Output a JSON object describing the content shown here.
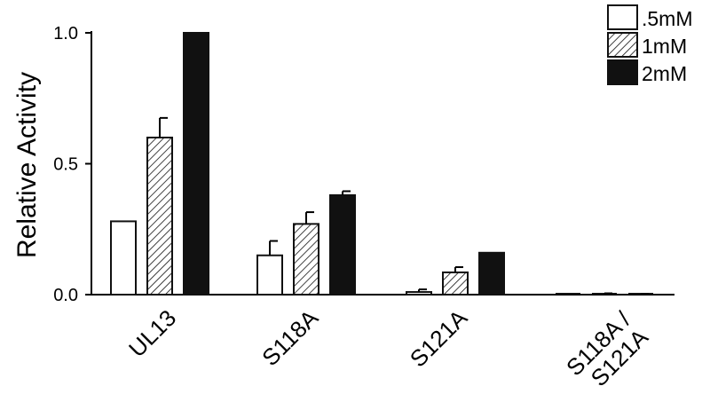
{
  "chart_data": {
    "type": "bar",
    "ylabel": "Relative Activity",
    "ylim": [
      0,
      1.0
    ],
    "yticks": [
      "0.0",
      "0.5",
      "1.0"
    ],
    "ytick_values": [
      0,
      0.5,
      1.0
    ],
    "categories": [
      {
        "lines": [
          "UL13"
        ]
      },
      {
        "lines": [
          "S118A"
        ]
      },
      {
        "lines": [
          "S121A"
        ]
      },
      {
        "lines": [
          "S118A /",
          "S121A"
        ]
      }
    ],
    "series": [
      {
        "name": ".5mM",
        "fill": "open",
        "values": [
          0.28,
          0.15,
          0.01,
          0.0
        ],
        "errors": [
          0.0,
          0.055,
          0.01,
          0.0
        ]
      },
      {
        "name": "1mM",
        "fill": "hatched",
        "values": [
          0.6,
          0.27,
          0.085,
          0.0
        ],
        "errors": [
          0.075,
          0.045,
          0.02,
          0.005
        ]
      },
      {
        "name": "2mM",
        "fill": "solid",
        "values": [
          1.0,
          0.38,
          0.16,
          0.0
        ],
        "errors": [
          0.0,
          0.015,
          0.0,
          0.002
        ]
      }
    ],
    "legend_position": "top-right",
    "colors": {
      "bar_stroke": "#111111",
      "solid_fill": "#111111",
      "open_fill": "#ffffff"
    }
  }
}
